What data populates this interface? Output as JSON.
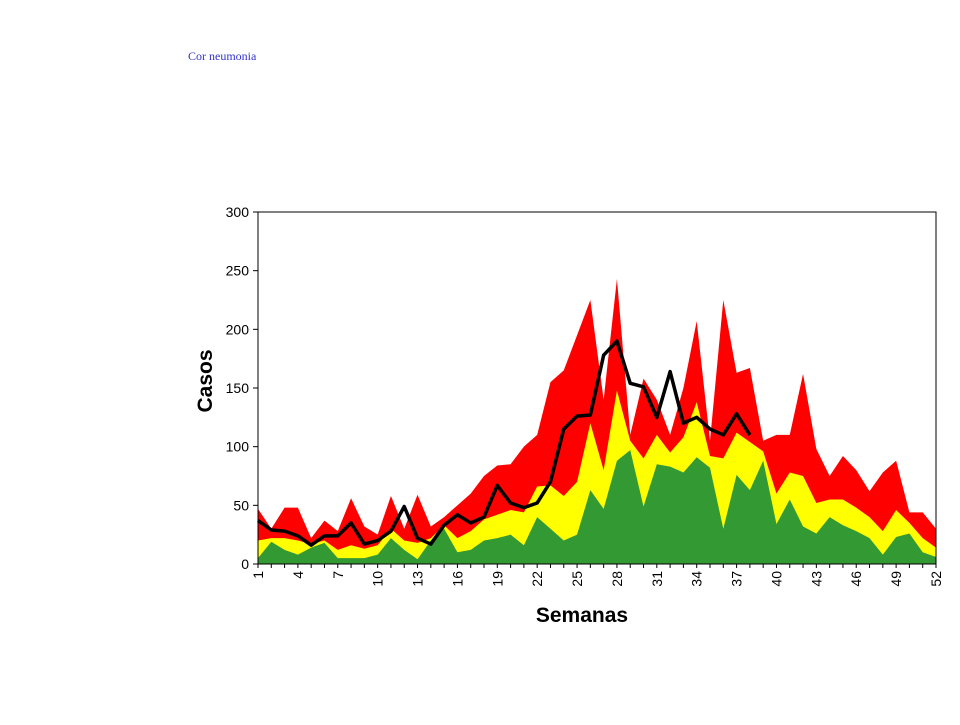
{
  "chart_data": {
    "type": "area",
    "title": "Cor neumonia",
    "ylabel": "Casos",
    "xlabel": "Semanas",
    "categories": [
      1,
      null,
      null,
      4,
      null,
      null,
      7,
      null,
      null,
      10,
      null,
      null,
      13,
      null,
      null,
      16,
      null,
      null,
      19,
      null,
      null,
      22,
      null,
      null,
      25,
      null,
      null,
      28,
      null,
      null,
      31,
      null,
      null,
      34,
      null,
      null,
      37,
      null,
      null,
      40,
      null,
      null,
      43,
      null,
      null,
      46,
      null,
      null,
      49,
      null,
      null,
      52
    ],
    "ylim": [
      0,
      300
    ],
    "yticks": [
      0,
      50,
      100,
      150,
      200,
      250,
      300
    ],
    "series": [
      {
        "color": "#ff0000",
        "values": [
          47,
          30,
          48,
          48,
          22,
          37,
          28,
          56,
          32,
          25,
          58,
          30,
          59,
          32,
          40,
          50,
          60,
          75,
          84,
          85,
          100,
          110,
          155,
          165,
          195,
          225,
          140,
          243,
          110,
          158,
          140,
          110,
          150,
          207,
          105,
          225,
          163,
          167,
          105,
          110,
          110,
          162,
          98,
          75,
          92,
          80,
          62,
          78,
          88,
          44,
          44,
          30
        ]
      },
      {
        "color": "#ffff00",
        "values": [
          20,
          22,
          22,
          20,
          17,
          20,
          12,
          16,
          13,
          16,
          30,
          20,
          18,
          22,
          33,
          22,
          28,
          38,
          42,
          46,
          44,
          66,
          67,
          58,
          70,
          120,
          80,
          148,
          105,
          90,
          110,
          95,
          108,
          138,
          92,
          90,
          112,
          104,
          96,
          60,
          78,
          75,
          52,
          55,
          55,
          48,
          40,
          28,
          46,
          35,
          22,
          14
        ]
      },
      {
        "color": "#339933",
        "values": [
          5,
          19,
          12,
          8,
          14,
          18,
          5,
          5,
          5,
          8,
          22,
          12,
          4,
          20,
          30,
          10,
          12,
          20,
          22,
          25,
          16,
          40,
          30,
          20,
          25,
          63,
          47,
          88,
          97,
          49,
          85,
          83,
          78,
          91,
          82,
          30,
          76,
          63,
          88,
          34,
          55,
          32,
          26,
          40,
          33,
          28,
          22,
          8,
          23,
          26,
          10,
          6
        ]
      },
      {
        "color": "#000000",
        "line": true,
        "values": [
          37,
          29,
          28,
          24,
          16,
          24,
          24,
          35,
          17,
          20,
          28,
          49,
          22,
          17,
          33,
          42,
          35,
          40,
          67,
          52,
          48,
          52,
          70,
          115,
          126,
          127,
          178,
          190,
          154,
          151,
          125,
          164,
          120,
          125,
          115,
          110,
          128,
          110,
          null,
          null,
          null,
          null,
          null,
          null,
          null,
          null,
          null,
          null,
          null,
          null,
          null,
          null
        ]
      }
    ]
  }
}
